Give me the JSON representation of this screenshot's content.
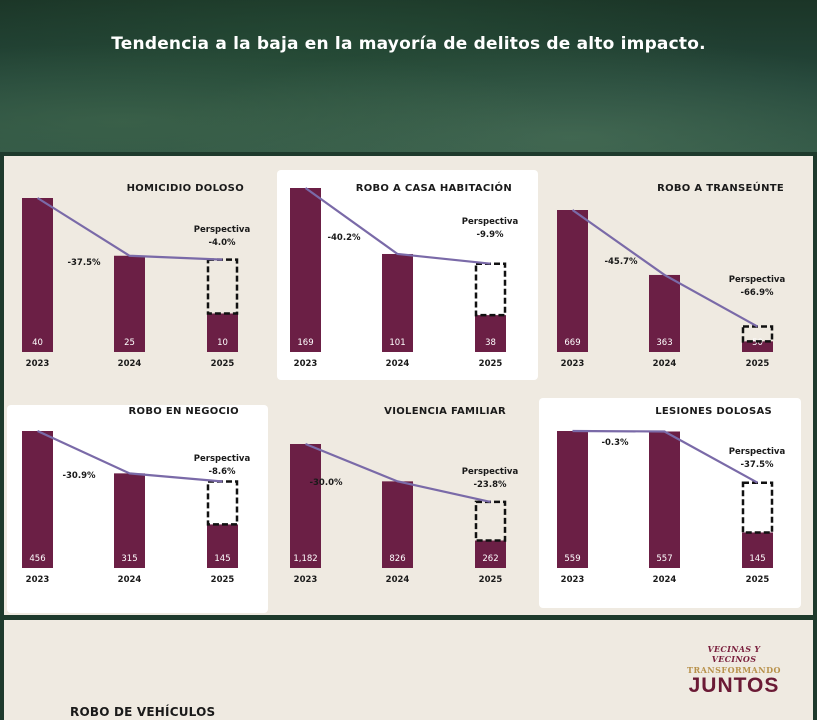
{
  "header": {
    "subtitle": "Tendencia a la baja en la mayoría de delitos de alto impacto."
  },
  "colors": {
    "bar": "#6b1f45",
    "trend_line": "#7a6aa8",
    "panel_bg": "#efeae1",
    "header_bg": "#1e3a2c"
  },
  "chart_data": [
    {
      "type": "bar",
      "title": "HOMICIDIO DOLOSO",
      "categories": [
        "2023",
        "2024",
        "2025"
      ],
      "values": [
        40,
        25,
        10
      ],
      "value_labels": [
        "40",
        "25",
        "10"
      ],
      "change_2023_2024": "-37.5%",
      "perspective_label": "Perspectiva",
      "perspective_change": "-4.0%",
      "projected_2025": 24,
      "ylim": [
        0,
        40
      ]
    },
    {
      "type": "bar",
      "title": "ROBO A CASA HABITACIÓN",
      "categories": [
        "2023",
        "2024",
        "2025"
      ],
      "values": [
        169,
        101,
        38
      ],
      "value_labels": [
        "169",
        "101",
        "38"
      ],
      "change_2023_2024": "-40.2%",
      "perspective_label": "Perspectiva",
      "perspective_change": "-9.9%",
      "projected_2025": 91,
      "ylim": [
        0,
        169
      ]
    },
    {
      "type": "bar",
      "title": "ROBO A TRANSEÚNTE",
      "categories": [
        "2023",
        "2024",
        "2025"
      ],
      "values": [
        669,
        363,
        50
      ],
      "value_labels": [
        "669",
        "363",
        "50"
      ],
      "change_2023_2024": "-45.7%",
      "perspective_label": "Perspectiva",
      "perspective_change": "-66.9%",
      "projected_2025": 120,
      "ylim": [
        0,
        669
      ]
    },
    {
      "type": "bar",
      "title": "ROBO EN NEGOCIO",
      "categories": [
        "2023",
        "2024",
        "2025"
      ],
      "values": [
        456,
        315,
        145
      ],
      "value_labels": [
        "456",
        "315",
        "145"
      ],
      "change_2023_2024": "-30.9%",
      "perspective_label": "Perspectiva",
      "perspective_change": "-8.6%",
      "projected_2025": 288,
      "ylim": [
        0,
        456
      ]
    },
    {
      "type": "bar",
      "title": "VIOLENCIA FAMILIAR",
      "categories": [
        "2023",
        "2024",
        "2025"
      ],
      "values": [
        1182,
        826,
        262
      ],
      "value_labels": [
        "1,182",
        "826",
        "262"
      ],
      "change_2023_2024": "-30.0%",
      "perspective_label": "Perspectiva",
      "perspective_change": "-23.8%",
      "projected_2025": 630,
      "ylim": [
        0,
        1182
      ]
    },
    {
      "type": "bar",
      "title": "LESIONES DOLOSAS",
      "categories": [
        "2023",
        "2024",
        "2025"
      ],
      "values": [
        559,
        557,
        145
      ],
      "value_labels": [
        "559",
        "557",
        "145"
      ],
      "change_2023_2024": "-0.3%",
      "perspective_label": "Perspectiva",
      "perspective_change": "-37.5%",
      "projected_2025": 348,
      "ylim": [
        0,
        559
      ]
    }
  ],
  "logo": {
    "line1": "VECINAS Y VECINOS",
    "line2": "TRANSFORMANDO",
    "line3": "JUNTOS"
  },
  "next_section": {
    "title": "ROBO DE VEHÍCULOS"
  }
}
